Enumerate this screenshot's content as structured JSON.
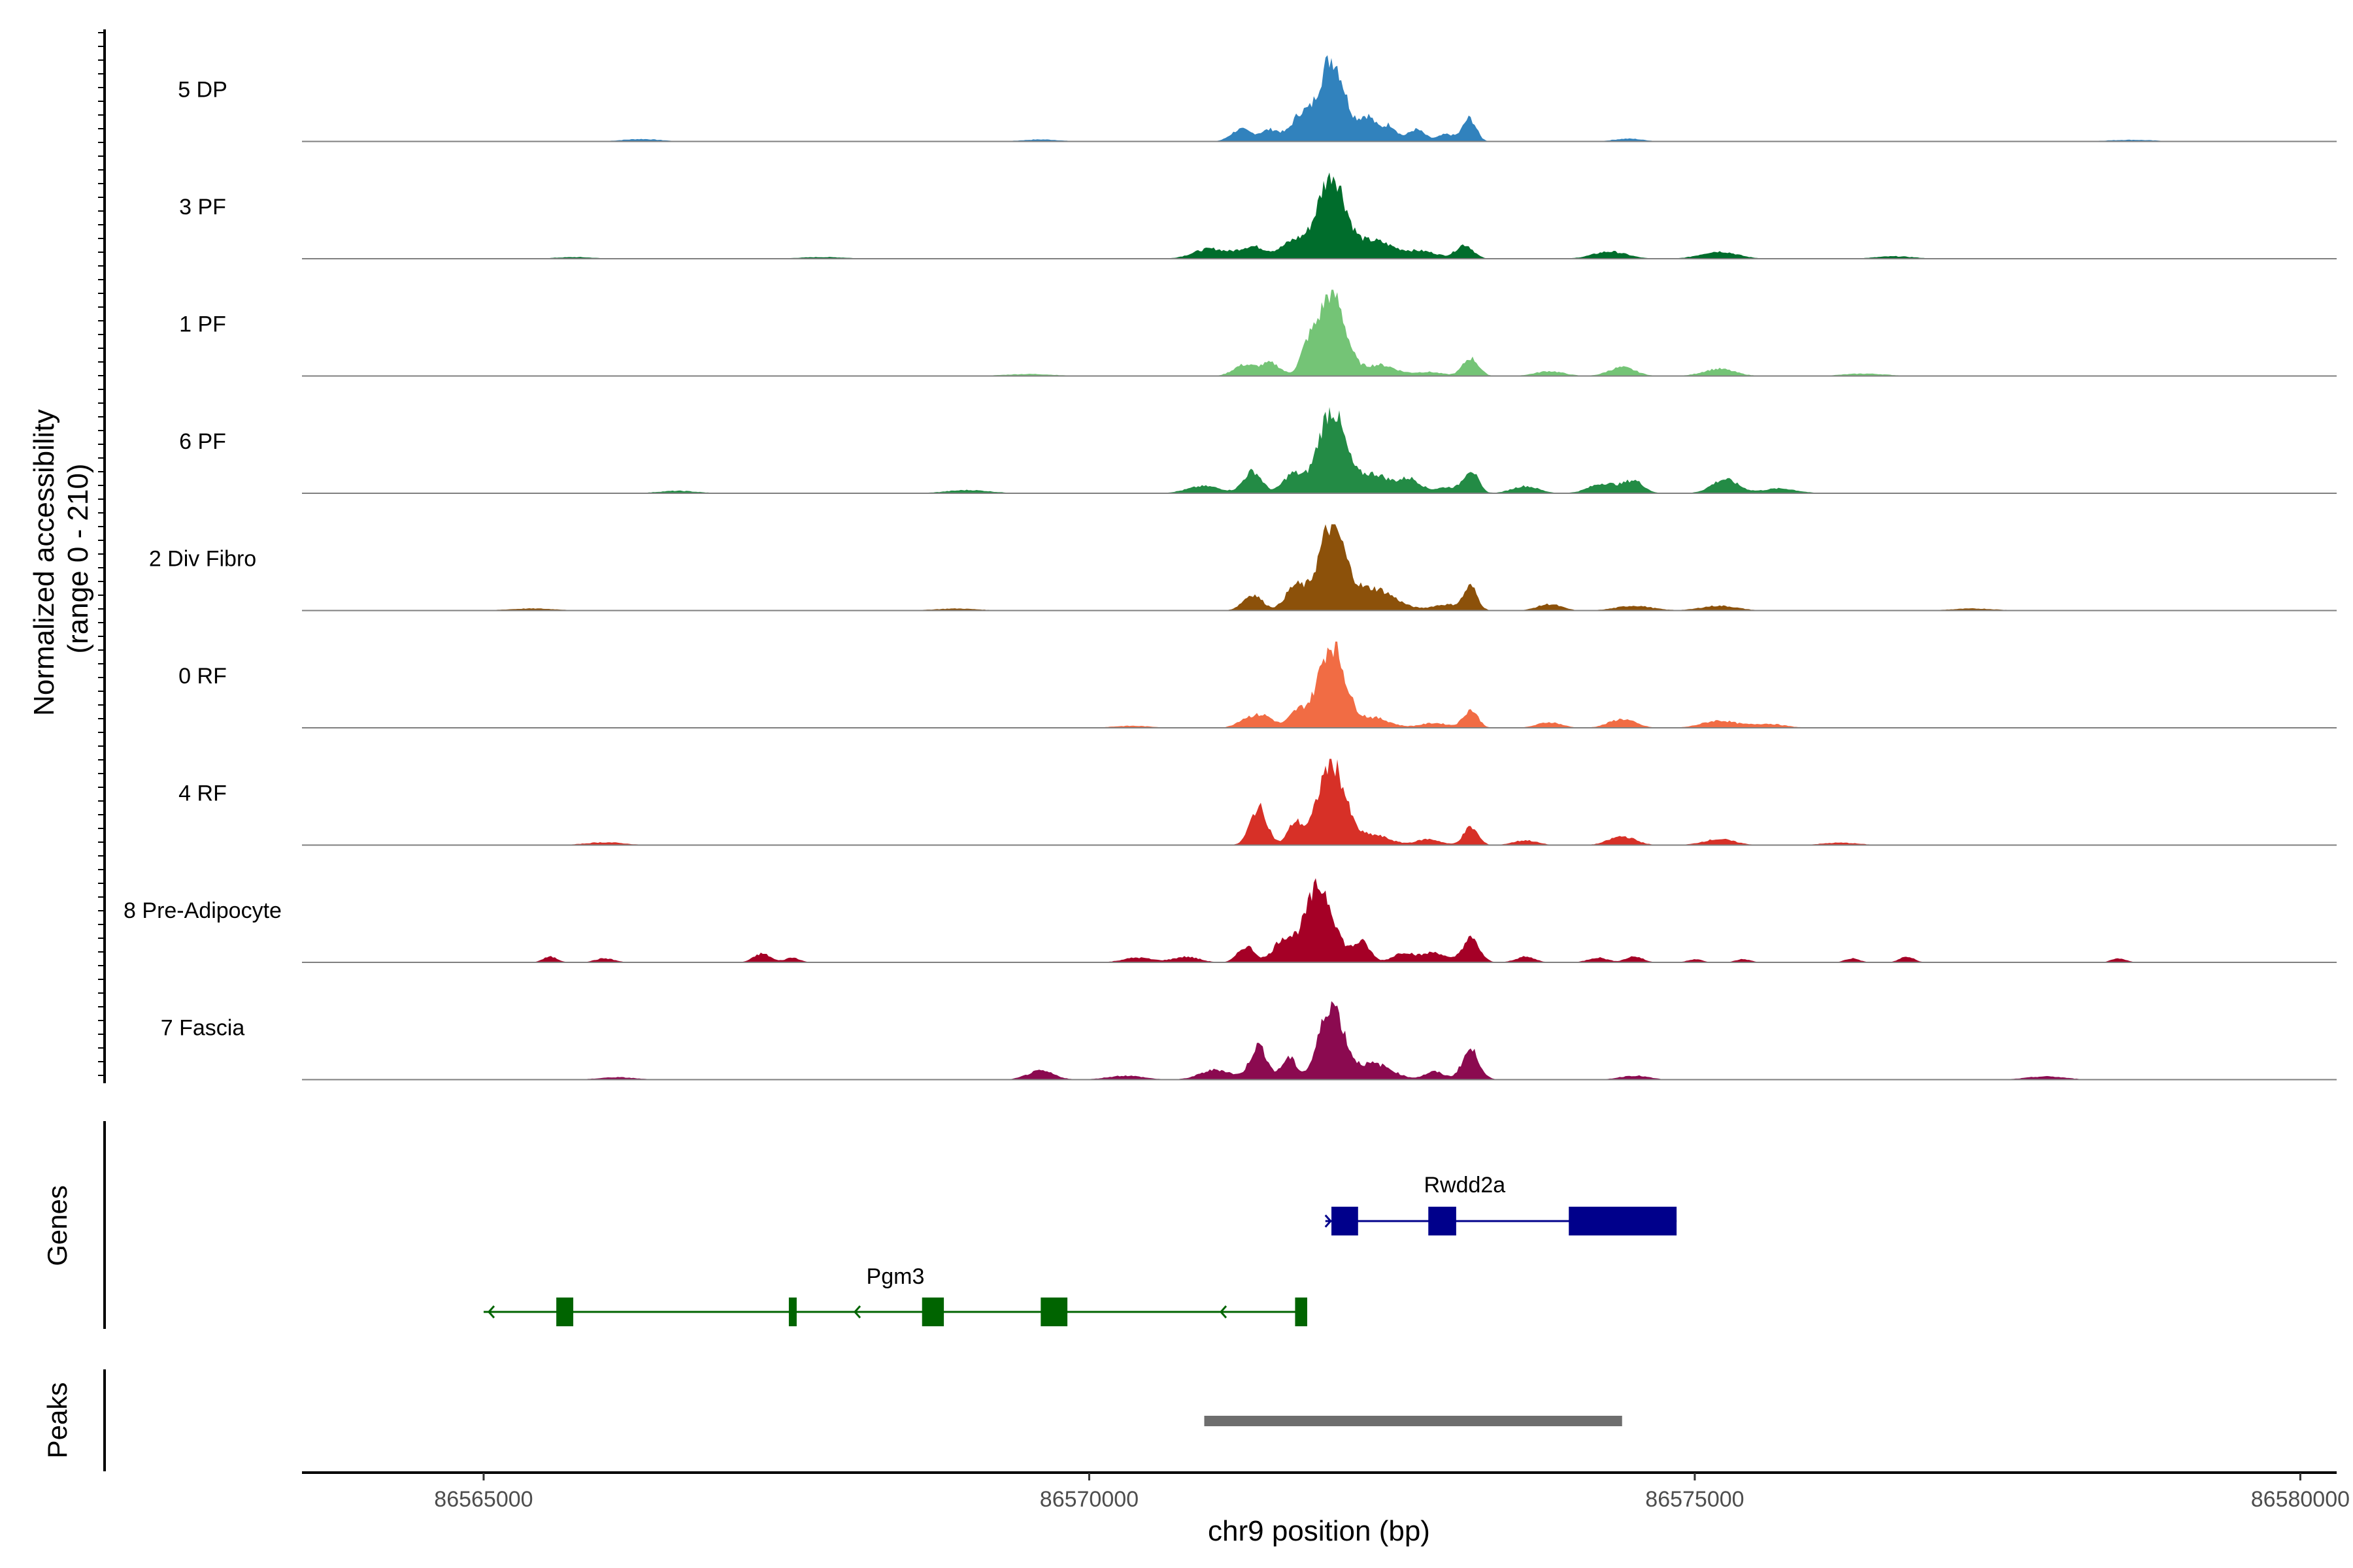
{
  "chart_data": {
    "type": "area",
    "title": "",
    "xlabel": "chr9 position (bp)",
    "ylabel": "Normalized accessibility",
    "ylabel_range": "(range 0 - 210)",
    "xlim": [
      86563500,
      86580300
    ],
    "ylim": [
      0,
      210
    ],
    "x_ticks": [
      86565000,
      86570000,
      86575000,
      86580000
    ],
    "x_tick_labels": [
      "86565000",
      "86570000",
      "86575000",
      "86580000"
    ],
    "tracks": [
      {
        "name": "5 DP",
        "color": "#3182bd",
        "peaks": [
          [
            86572000,
            210,
            110
          ],
          [
            86571740,
            60,
            70
          ],
          [
            86571500,
            30,
            90
          ],
          [
            86571250,
            30,
            80
          ],
          [
            86572300,
            60,
            70
          ],
          [
            86572480,
            40,
            60
          ],
          [
            86572700,
            30,
            70
          ],
          [
            86572950,
            18,
            70
          ],
          [
            86573140,
            58,
            55
          ],
          [
            86566300,
            6,
            160
          ],
          [
            86569600,
            5,
            150
          ],
          [
            86574450,
            7,
            120
          ],
          [
            86578600,
            4,
            200
          ]
        ]
      },
      {
        "name": "3 PF",
        "color": "#006d2c",
        "peaks": [
          [
            86572000,
            210,
            110
          ],
          [
            86571700,
            45,
            110
          ],
          [
            86571350,
            30,
            110
          ],
          [
            86572350,
            45,
            160
          ],
          [
            86571000,
            25,
            140
          ],
          [
            86573100,
            35,
            70
          ],
          [
            86572750,
            18,
            130
          ],
          [
            86574300,
            18,
            140
          ],
          [
            86575200,
            18,
            150
          ],
          [
            86567800,
            4,
            200
          ],
          [
            86576650,
            6,
            160
          ],
          [
            86565750,
            4,
            160
          ]
        ]
      },
      {
        "name": "1 PF",
        "color": "#74c476",
        "peaks": [
          [
            86572000,
            210,
            110
          ],
          [
            86571800,
            55,
            60
          ],
          [
            86571280,
            28,
            90
          ],
          [
            86571500,
            32,
            80
          ],
          [
            86572400,
            28,
            130
          ],
          [
            86573150,
            45,
            65
          ],
          [
            86573800,
            12,
            120
          ],
          [
            86574400,
            22,
            110
          ],
          [
            86575200,
            18,
            130
          ],
          [
            86572800,
            10,
            120
          ],
          [
            86576400,
            6,
            180
          ],
          [
            86569500,
            5,
            200
          ]
        ]
      },
      {
        "name": "6 PF",
        "color": "#238b45",
        "peaks": [
          [
            86572000,
            210,
            110
          ],
          [
            86571350,
            55,
            75
          ],
          [
            86571680,
            48,
            80
          ],
          [
            86572350,
            48,
            130
          ],
          [
            86572650,
            35,
            90
          ],
          [
            86573150,
            58,
            60
          ],
          [
            86570950,
            18,
            140
          ],
          [
            86573600,
            18,
            110
          ],
          [
            86574250,
            25,
            120
          ],
          [
            86574500,
            30,
            80
          ],
          [
            86575250,
            35,
            110
          ],
          [
            86572950,
            15,
            90
          ],
          [
            86575700,
            12,
            140
          ],
          [
            86569000,
            8,
            180
          ],
          [
            86566600,
            6,
            160
          ]
        ]
      },
      {
        "name": "2 Div Fibro",
        "color": "#8c510a",
        "peaks": [
          [
            86572000,
            210,
            110
          ],
          [
            86571350,
            40,
            80
          ],
          [
            86571700,
            60,
            80
          ],
          [
            86572350,
            55,
            170
          ],
          [
            86572950,
            15,
            120
          ],
          [
            86573150,
            58,
            55
          ],
          [
            86573800,
            16,
            100
          ],
          [
            86574500,
            12,
            150
          ],
          [
            86575200,
            12,
            150
          ],
          [
            86577300,
            5,
            180
          ],
          [
            86565400,
            5,
            200
          ],
          [
            86568900,
            5,
            180
          ]
        ]
      },
      {
        "name": "0 RF",
        "color": "#f16c44",
        "peaks": [
          [
            86572000,
            210,
            110
          ],
          [
            86571450,
            28,
            80
          ],
          [
            86571720,
            40,
            70
          ],
          [
            86571300,
            22,
            80
          ],
          [
            86572350,
            25,
            130
          ],
          [
            86573150,
            45,
            60
          ],
          [
            86572850,
            12,
            120
          ],
          [
            86573800,
            14,
            100
          ],
          [
            86574400,
            22,
            110
          ],
          [
            86575200,
            18,
            140
          ],
          [
            86575600,
            10,
            140
          ],
          [
            86570350,
            5,
            160
          ]
        ]
      },
      {
        "name": "4 RF",
        "color": "#d73027",
        "peaks": [
          [
            86572000,
            210,
            110
          ],
          [
            86571400,
            95,
            70
          ],
          [
            86571700,
            55,
            60
          ],
          [
            86572350,
            25,
            130
          ],
          [
            86573150,
            45,
            60
          ],
          [
            86572800,
            15,
            100
          ],
          [
            86573600,
            12,
            100
          ],
          [
            86574400,
            22,
            110
          ],
          [
            86575200,
            15,
            130
          ],
          [
            86566000,
            7,
            160
          ],
          [
            86576200,
            6,
            150
          ]
        ]
      },
      {
        "name": "8 Pre-Adipocyte",
        "color": "#a50026",
        "peaks": [
          [
            86571900,
            190,
            120
          ],
          [
            86572250,
            50,
            70
          ],
          [
            86571600,
            55,
            80
          ],
          [
            86571300,
            40,
            70
          ],
          [
            86572600,
            25,
            90
          ],
          [
            86573150,
            60,
            70
          ],
          [
            86572850,
            25,
            90
          ],
          [
            86565550,
            14,
            60
          ],
          [
            86566000,
            10,
            80
          ],
          [
            86567300,
            22,
            70
          ],
          [
            86567550,
            12,
            60
          ],
          [
            86570400,
            12,
            120
          ],
          [
            86570800,
            14,
            110
          ],
          [
            86573600,
            14,
            80
          ],
          [
            86574200,
            12,
            80
          ],
          [
            86574500,
            15,
            70
          ],
          [
            86575000,
            8,
            60
          ],
          [
            86575400,
            8,
            60
          ],
          [
            86576300,
            10,
            60
          ],
          [
            86576750,
            14,
            60
          ],
          [
            86578500,
            10,
            60
          ]
        ]
      },
      {
        "name": "7 Fascia",
        "color": "#8b0a50",
        "peaks": [
          [
            86572000,
            190,
            100
          ],
          [
            86571400,
            85,
            70
          ],
          [
            86571650,
            55,
            60
          ],
          [
            86572350,
            40,
            150
          ],
          [
            86572850,
            20,
            80
          ],
          [
            86573150,
            75,
            70
          ],
          [
            86569600,
            22,
            110
          ],
          [
            86571050,
            25,
            130
          ],
          [
            86570300,
            10,
            150
          ],
          [
            86574500,
            10,
            120
          ],
          [
            86577900,
            8,
            160
          ],
          [
            86566100,
            6,
            150
          ]
        ]
      }
    ],
    "genes": [
      {
        "name": "Rwdd2a",
        "strand": "+",
        "color": "#00008b",
        "start": 86571950,
        "end": 86574850,
        "exons": [
          [
            86572000,
            86572220
          ],
          [
            86572800,
            86573030
          ],
          [
            86573960,
            86574850
          ]
        ]
      },
      {
        "name": "Pgm3",
        "strand": "-",
        "color": "#006400",
        "start": 86565000,
        "end": 86571800,
        "exons": [
          [
            86565600,
            86565740
          ],
          [
            86567520,
            86567580
          ],
          [
            86568620,
            86568800
          ],
          [
            86569600,
            86569820
          ],
          [
            86571700,
            86571800
          ]
        ]
      }
    ],
    "peaks_track": [
      {
        "start": 86570950,
        "end": 86574400,
        "color": "#6e6e6e"
      }
    ],
    "panel_labels": [
      "Genes",
      "Peaks"
    ]
  }
}
